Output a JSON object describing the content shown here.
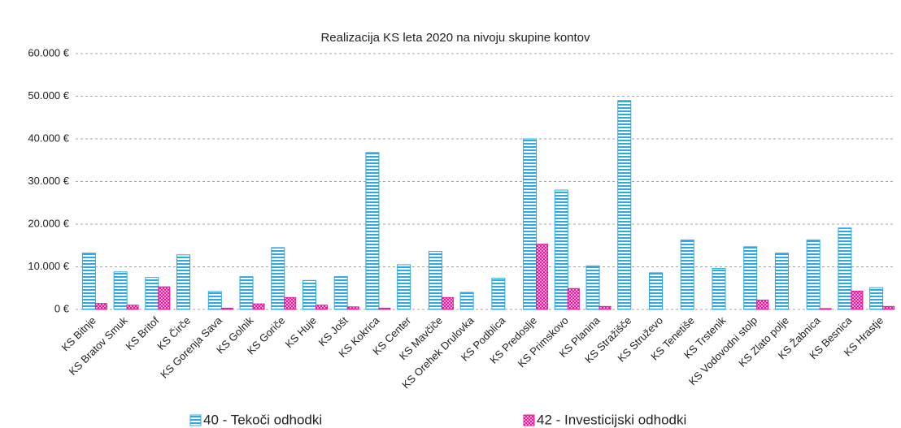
{
  "chart_data": {
    "type": "bar",
    "title": "Realizacija KS leta 2020 na nivoju skupine kontov",
    "categories": [
      "KS Bitnje",
      "KS Bratov Smuk",
      "KS Britof",
      "KS Čirče",
      "KS Gorenja Sava",
      "KS Golnik",
      "KS Goriče",
      "KS Huje",
      "KS Jošt",
      "KS Kokrica",
      "KS Center",
      "KS Mavčiče",
      "KS Orehek Drulovka",
      "KS Podblica",
      "KS Predoslje",
      "KS Primskovo",
      "KS Planina",
      "KS Stražišče",
      "KS Struževo",
      "KS Tenetiše",
      "KS Trstenik",
      "KS Vodovodni stolp",
      "KS Zlato polje",
      "KS Žabnica",
      "KS Besnica",
      "KS Hrastje"
    ],
    "series": [
      {
        "name": "40 - Tekoči odhodki",
        "color": "#2ea8e0",
        "values": [
          13200,
          8800,
          7500,
          12800,
          4200,
          7700,
          14500,
          6800,
          7700,
          36800,
          10500,
          13600,
          4000,
          7300,
          40000,
          28000,
          10200,
          49000,
          8600,
          16300,
          9600,
          14700,
          13200,
          16300,
          19100,
          5100
        ]
      },
      {
        "name": "42 - Investicijski odhodki",
        "color": "#e6199b",
        "values": [
          1400,
          1000,
          5300,
          0,
          300,
          1300,
          2800,
          1000,
          600,
          300,
          0,
          2800,
          0,
          0,
          15300,
          4900,
          700,
          0,
          0,
          0,
          0,
          2200,
          0,
          200,
          4300,
          700
        ]
      }
    ],
    "ylim": [
      0,
      60000
    ],
    "yticks": [
      {
        "value": 0,
        "label": "0 €"
      },
      {
        "value": 10000,
        "label": "10.000 €"
      },
      {
        "value": 20000,
        "label": "20.000 €"
      },
      {
        "value": 30000,
        "label": "30.000 €"
      },
      {
        "value": 40000,
        "label": "40.000 €"
      },
      {
        "value": 50000,
        "label": "50.000 €"
      },
      {
        "value": 60000,
        "label": "60.000 €"
      }
    ],
    "grid": true
  }
}
